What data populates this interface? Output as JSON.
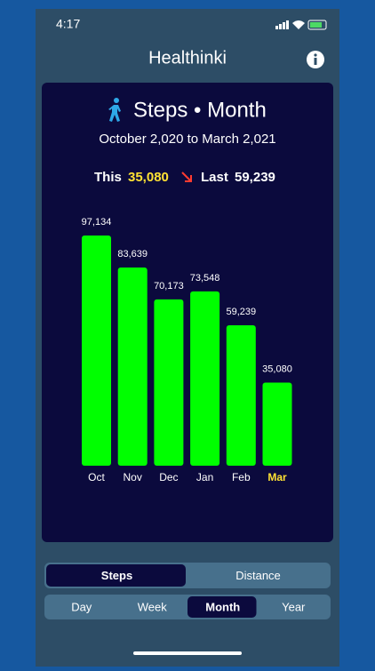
{
  "status_bar": {
    "time": "4:17"
  },
  "header": {
    "title": "Healthinki"
  },
  "summary": {
    "this_label": "This",
    "this_value": "35,080",
    "last_label": "Last",
    "last_value": "59,239"
  },
  "chart_data": {
    "type": "bar",
    "title": "Steps • Month",
    "subtitle": "October 2,020 to March 2,021",
    "categories": [
      "Oct",
      "Nov",
      "Dec",
      "Jan",
      "Feb",
      "Mar"
    ],
    "values": [
      97134,
      83639,
      70173,
      73548,
      59239,
      35080
    ],
    "value_labels": [
      "97,134",
      "83,639",
      "70,173",
      "73,548",
      "59,239",
      "35,080"
    ],
    "color": "#00ff00",
    "highlight_index": 5,
    "highlight_color": "#ffe234"
  },
  "metric_tabs": {
    "options": [
      "Steps",
      "Distance"
    ],
    "selected": 0
  },
  "period_tabs": {
    "options": [
      "Day",
      "Week",
      "Month",
      "Year"
    ],
    "selected": 2
  }
}
